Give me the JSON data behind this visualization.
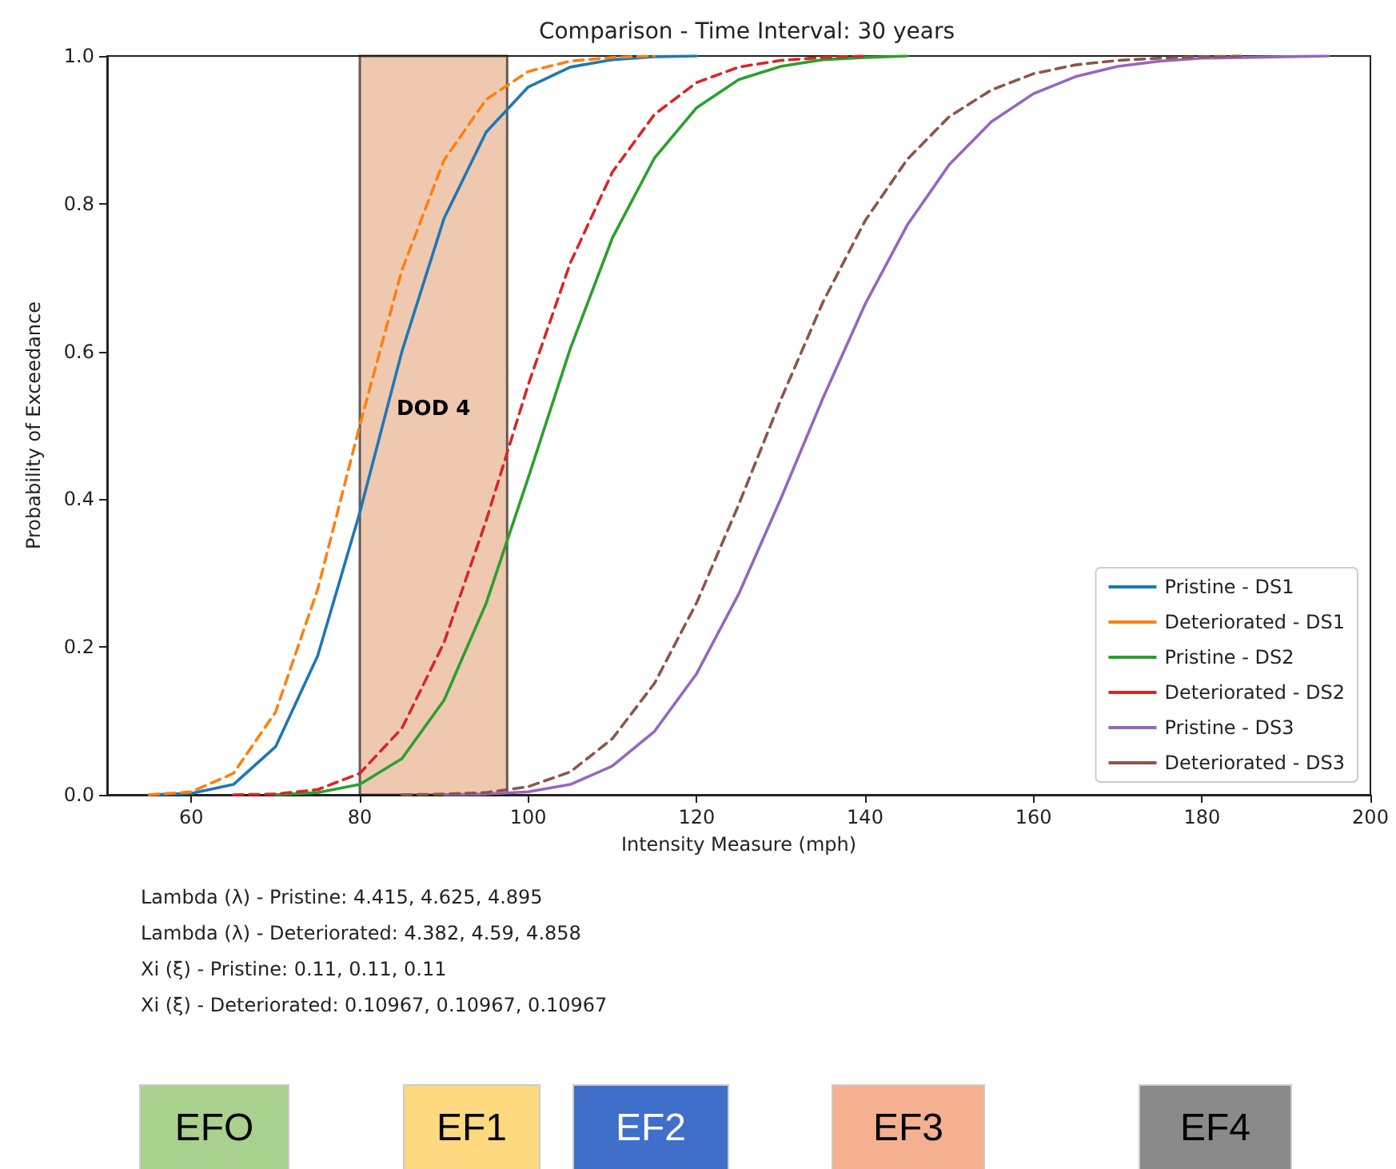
{
  "chart_data": {
    "type": "line",
    "title": "Comparison - Time Interval: 30 years",
    "xlabel": "Intensity Measure (mph)",
    "ylabel": "Probability of Exceedance",
    "series": [
      {
        "name": "Pristine - DS1",
        "color": "#1f77b4",
        "line_style": "solid",
        "x": [
          55,
          60,
          65,
          70,
          75,
          80,
          85,
          90,
          95,
          100,
          105,
          110,
          115,
          120
        ],
        "values": [
          0,
          0.002,
          0.014,
          0.065,
          0.188,
          0.382,
          0.6,
          0.78,
          0.897,
          0.958,
          0.985,
          0.995,
          0.999,
          1
        ]
      },
      {
        "name": "Deteriorated - DS1",
        "color": "#ff7f0e",
        "line_style": "dashed",
        "x": [
          55,
          60,
          65,
          70,
          75,
          80,
          85,
          90,
          95,
          100,
          105,
          110,
          115
        ],
        "values": [
          0,
          0.004,
          0.029,
          0.112,
          0.278,
          0.5,
          0.71,
          0.859,
          0.941,
          0.979,
          0.993,
          0.998,
          1
        ]
      },
      {
        "name": "Pristine - DS2",
        "color": "#2ca02c",
        "line_style": "solid",
        "x": [
          70,
          75,
          80,
          85,
          90,
          95,
          100,
          105,
          110,
          115,
          120,
          125,
          130,
          135,
          140,
          145
        ],
        "values": [
          0,
          0.003,
          0.014,
          0.049,
          0.128,
          0.259,
          0.429,
          0.604,
          0.754,
          0.862,
          0.93,
          0.968,
          0.986,
          0.995,
          0.998,
          1
        ]
      },
      {
        "name": "Deteriorated - DS2",
        "color": "#d62728",
        "line_style": "dashed",
        "x": [
          65,
          70,
          75,
          80,
          85,
          90,
          95,
          100,
          105,
          110,
          115,
          120,
          125,
          130,
          135,
          140
        ],
        "values": [
          0,
          0.001,
          0.007,
          0.029,
          0.09,
          0.206,
          0.371,
          0.555,
          0.72,
          0.843,
          0.921,
          0.964,
          0.985,
          0.994,
          0.998,
          1
        ]
      },
      {
        "name": "Pristine - DS3",
        "color": "#9467bd",
        "line_style": "solid",
        "x": [
          90,
          95,
          100,
          105,
          110,
          115,
          120,
          125,
          130,
          135,
          140,
          145,
          150,
          155,
          160,
          165,
          170,
          175,
          180,
          185,
          190,
          195
        ],
        "values": [
          0,
          0.001,
          0.004,
          0.014,
          0.039,
          0.086,
          0.164,
          0.272,
          0.401,
          0.537,
          0.664,
          0.771,
          0.853,
          0.911,
          0.949,
          0.972,
          0.986,
          0.993,
          0.997,
          0.998,
          0.999,
          1
        ]
      },
      {
        "name": "Deteriorated - DS3",
        "color": "#8c564b",
        "line_style": "dashed",
        "x": [
          85,
          90,
          95,
          100,
          105,
          110,
          115,
          120,
          125,
          130,
          135,
          140,
          145,
          150,
          155,
          160,
          165,
          170,
          175,
          180,
          185
        ],
        "values": [
          0,
          0.001,
          0.003,
          0.011,
          0.031,
          0.076,
          0.151,
          0.26,
          0.393,
          0.535,
          0.667,
          0.777,
          0.86,
          0.918,
          0.954,
          0.976,
          0.988,
          0.994,
          0.997,
          0.999,
          1
        ]
      }
    ],
    "xlim": [
      50,
      200
    ],
    "xticks": [
      60,
      80,
      100,
      120,
      140,
      160,
      180,
      200
    ],
    "ylim": [
      0,
      1
    ],
    "yticks": [
      {
        "value": 0,
        "label": "0.0"
      },
      0.2,
      0.4,
      0.6,
      0.8,
      {
        "value": 1,
        "label": "1.0"
      }
    ],
    "bands": [
      {
        "axis": "x",
        "from": 80,
        "to": 97.5,
        "label": "DOD 4",
        "color": "#e2a57c"
      }
    ],
    "grid": false,
    "legend": "bottom right",
    "marker": "none",
    "annotations": [
      "Lambda (λ) - Pristine: 4.415, 4.625, 4.895",
      "Lambda (λ) - Deteriorated: 4.382, 4.59, 4.858",
      "Xi (ξ) - Pristine: 0.11, 0.11, 0.11",
      "Xi (ξ) - Deteriorated: 0.10967, 0.10967, 0.10967",
      "EFO",
      "EF1",
      "EF2",
      "EF3",
      "EF4"
    ]
  }
}
